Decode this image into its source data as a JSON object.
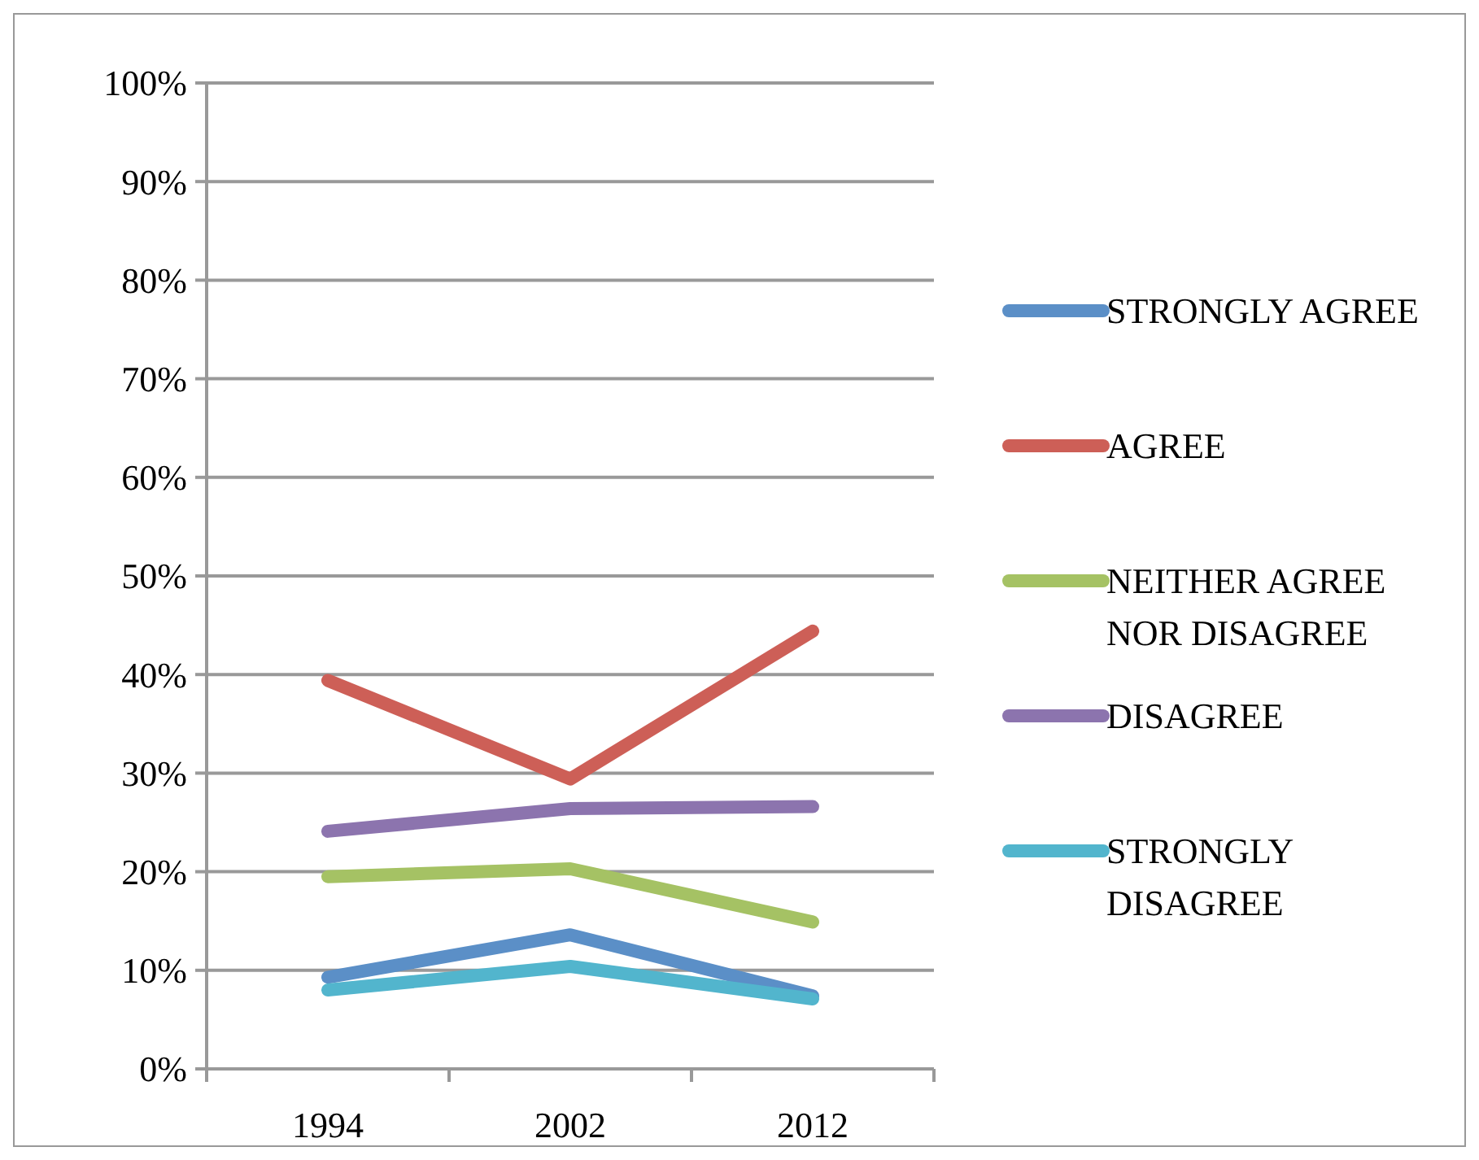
{
  "chart_data": {
    "type": "line",
    "categories": [
      "1994",
      "2002",
      "2012"
    ],
    "series": [
      {
        "name": "STRONGLY AGREE",
        "color": "#5b8fc7",
        "values": [
          9.3,
          13.6,
          7.4
        ]
      },
      {
        "name": "AGREE",
        "color": "#cd5f57",
        "values": [
          39.4,
          29.4,
          44.4
        ]
      },
      {
        "name": "NEITHER AGREE NOR DISAGREE",
        "color": "#a5c264",
        "values": [
          19.5,
          20.3,
          14.9
        ]
      },
      {
        "name": "DISAGREE",
        "color": "#8c74ae",
        "values": [
          24.1,
          26.4,
          26.6
        ]
      },
      {
        "name": "STRONGLY DISAGREE",
        "color": "#52b5cd",
        "values": [
          8.0,
          10.4,
          7.1
        ]
      }
    ],
    "ylim": [
      0,
      100
    ],
    "yticks": [
      {
        "value": 0,
        "label": "0%"
      },
      {
        "value": 10,
        "label": "10%"
      },
      {
        "value": 20,
        "label": "20%"
      },
      {
        "value": 30,
        "label": "30%"
      },
      {
        "value": 40,
        "label": "40%"
      },
      {
        "value": 50,
        "label": "50%"
      },
      {
        "value": 60,
        "label": "60%"
      },
      {
        "value": 70,
        "label": "70%"
      },
      {
        "value": 80,
        "label": "80%"
      },
      {
        "value": 90,
        "label": "90%"
      },
      {
        "value": 100,
        "label": "100%"
      }
    ],
    "grid": "y",
    "legend": "right",
    "marker": "none",
    "line_style": "solid"
  }
}
